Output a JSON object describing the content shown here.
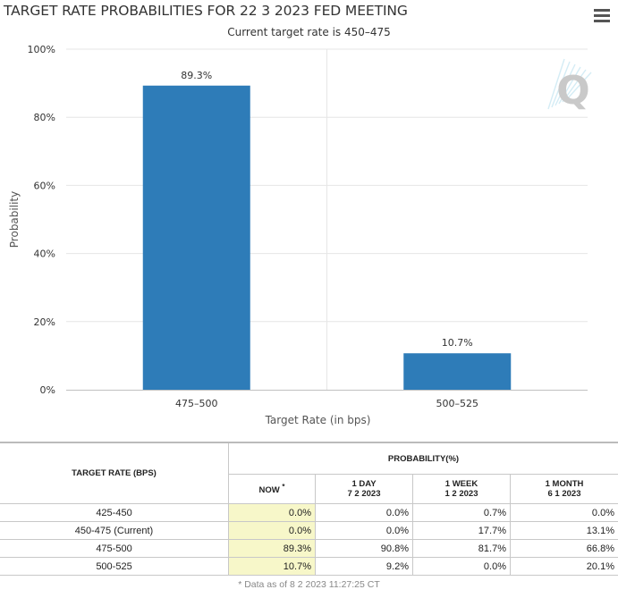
{
  "chart_data": {
    "type": "bar",
    "title": "TARGET RATE PROBABILITIES FOR 22 3 2023 FED MEETING",
    "subtitle": "Current target rate is 450–475",
    "categories": [
      "475–500",
      "500–525"
    ],
    "values": [
      89.3,
      10.7
    ],
    "data_labels": [
      "89.3%",
      "10.7%"
    ],
    "xlabel": "Target Rate (in bps)",
    "ylabel": "Probability",
    "ylim": [
      0,
      100
    ],
    "yticks": [
      0,
      20,
      40,
      60,
      80,
      100
    ],
    "ytick_labels": [
      "0%",
      "20%",
      "40%",
      "60%",
      "80%",
      "100%"
    ],
    "grid": true,
    "bar_color": "#2e7cb8"
  },
  "watermark": {
    "letter": "Q"
  },
  "menu": {
    "icon": "hamburger-menu-icon"
  },
  "table": {
    "rate_header": "TARGET RATE (BPS)",
    "prob_header": "PROBABILITY(%)",
    "columns": [
      {
        "line1": "NOW",
        "marker": "*",
        "line2": ""
      },
      {
        "line1": "1 DAY",
        "line2": "7 2 2023"
      },
      {
        "line1": "1 WEEK",
        "line2": "1 2 2023"
      },
      {
        "line1": "1 MONTH",
        "line2": "6 1 2023"
      }
    ],
    "rows": [
      {
        "rate": "425-450",
        "now": "0.0%",
        "day": "0.0%",
        "week": "0.7%",
        "month": "0.0%"
      },
      {
        "rate": "450-475 (Current)",
        "now": "0.0%",
        "day": "0.0%",
        "week": "17.7%",
        "month": "13.1%"
      },
      {
        "rate": "475-500",
        "now": "89.3%",
        "day": "90.8%",
        "week": "81.7%",
        "month": "66.8%"
      },
      {
        "rate": "500-525",
        "now": "10.7%",
        "day": "9.2%",
        "week": "0.0%",
        "month": "20.1%"
      }
    ],
    "footnote": "* Data as of 8 2 2023 11:27:25 CT"
  }
}
